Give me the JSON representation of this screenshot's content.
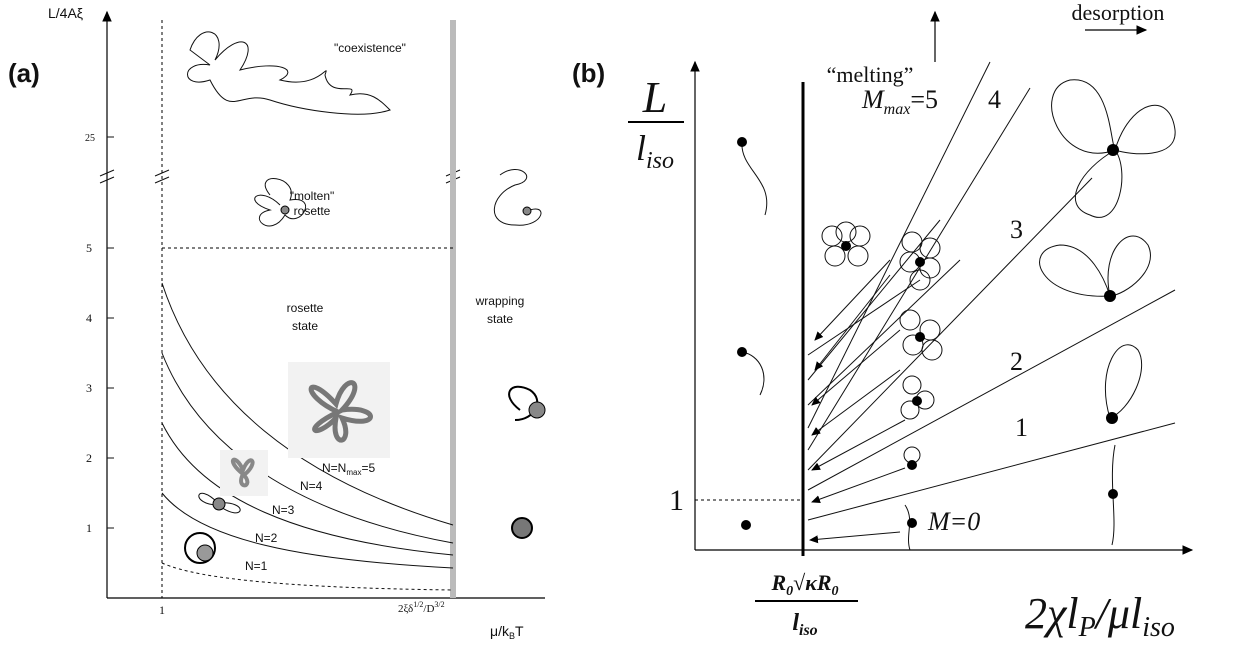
{
  "panel_a": {
    "label": "(a)",
    "y_axis_label": "L/4Aξ",
    "y_ticks": [
      "1",
      "2",
      "3",
      "4",
      "5",
      "25"
    ],
    "x_tick_1": "1",
    "x_tick_2": [
      "2ξδ",
      "1/2",
      "/D",
      "3/2"
    ],
    "x_axis_label": [
      "μ/k",
      "B",
      "T"
    ],
    "regions": {
      "coexistence": "\"coexistence\"",
      "molten": [
        "\"molten\"",
        "rosette"
      ],
      "rosette": [
        "rosette",
        "state"
      ],
      "wrapping": [
        "wrapping",
        "state"
      ]
    },
    "curves": [
      "N=1",
      "N=2",
      "N=3",
      "N=4"
    ],
    "curve_max": [
      "N=N",
      "max",
      "=5"
    ]
  },
  "panel_b": {
    "label": "(b)",
    "y_axis_label": {
      "numerator": "L",
      "denominator": [
        "l",
        "iso"
      ]
    },
    "y_tick": "1",
    "melting": "“melting”",
    "desorption": "desorption",
    "m_max": [
      "M",
      "max",
      "=5"
    ],
    "sectors": [
      "4",
      "3",
      "2",
      "1"
    ],
    "m_zero": "M=0",
    "x_tick": {
      "numerator": [
        "R",
        "0",
        "√",
        "κR",
        "0"
      ],
      "denominator": [
        "l",
        "iso"
      ]
    },
    "x_axis_label": [
      "2χl",
      "P",
      "/μl",
      "iso"
    ]
  }
}
